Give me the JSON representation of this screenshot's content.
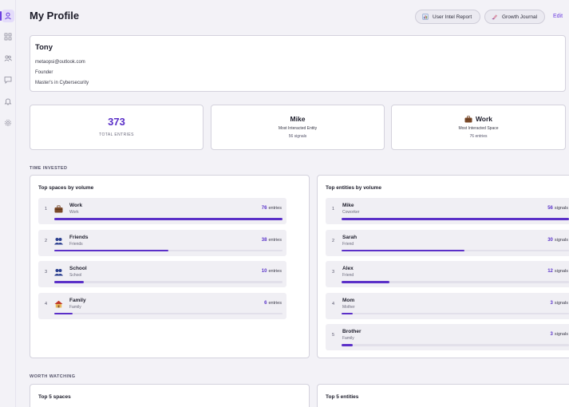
{
  "header": {
    "title": "My Profile",
    "buttons": [
      {
        "label": "User Intel Report",
        "icon": "chart-icon"
      },
      {
        "label": "Growth Journal",
        "icon": "journal-icon"
      }
    ],
    "edit_label": "Edit"
  },
  "sidebar": {
    "items": [
      {
        "icon": "person-icon",
        "active": true
      },
      {
        "icon": "grid-icon",
        "active": false
      },
      {
        "icon": "people-icon",
        "active": false
      },
      {
        "icon": "chat-icon",
        "active": false
      },
      {
        "icon": "bell-icon",
        "active": false
      },
      {
        "icon": "gear-icon",
        "active": false
      }
    ]
  },
  "profile": {
    "name": "Tony",
    "email": "metaopsi@outlook.com",
    "role": "Founder",
    "education": "Master's in Cybersecurity"
  },
  "stats": {
    "total": {
      "value": "373",
      "label": "TOTAL ENTRIES"
    },
    "entity": {
      "value": "Mike",
      "label": "Most Interacted Entity",
      "sub": "56 signals"
    },
    "space": {
      "value": "Work",
      "label": "Most Interacted Space",
      "sub": "76 entries",
      "icon": "briefcase-icon"
    }
  },
  "time_invested": {
    "section_label": "TIME INVESTED",
    "spaces": {
      "title": "Top spaces by volume",
      "unit": "entries",
      "items": [
        {
          "rank": "1",
          "name": "Work",
          "sub": "Work",
          "count": "76",
          "icon": "briefcase-icon",
          "fraction": 1.0
        },
        {
          "rank": "2",
          "name": "Friends",
          "sub": "Friends",
          "count": "38",
          "icon": "people-icon",
          "fraction": 0.5
        },
        {
          "rank": "3",
          "name": "School",
          "sub": "School",
          "count": "10",
          "icon": "people-icon",
          "fraction": 0.13
        },
        {
          "rank": "4",
          "name": "Family",
          "sub": "Family",
          "count": "6",
          "icon": "house-icon",
          "fraction": 0.08
        }
      ]
    },
    "entities": {
      "title": "Top entities by volume",
      "unit": "signals",
      "items": [
        {
          "rank": "1",
          "name": "Mike",
          "sub": "Coworker",
          "count": "56",
          "fraction": 1.0
        },
        {
          "rank": "2",
          "name": "Sarah",
          "sub": "Friend",
          "count": "30",
          "fraction": 0.54
        },
        {
          "rank": "3",
          "name": "Alex",
          "sub": "Friend",
          "count": "12",
          "fraction": 0.21
        },
        {
          "rank": "4",
          "name": "Mom",
          "sub": "Mother",
          "count": "3",
          "fraction": 0.05
        },
        {
          "rank": "5",
          "name": "Brother",
          "sub": "Family",
          "count": "3",
          "fraction": 0.05
        }
      ]
    }
  },
  "worth_watching": {
    "section_label": "WORTH WATCHING",
    "spaces_title": "Top 5 spaces",
    "entities_title": "Top 5 entities"
  },
  "colors": {
    "accent": "#6c3ee0",
    "bar": "#5b30c8"
  }
}
